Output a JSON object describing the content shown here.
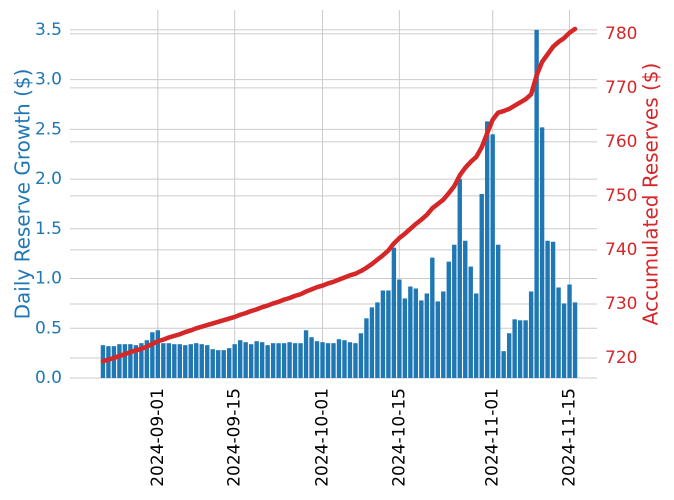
{
  "chart_data": {
    "type": "bar-line",
    "y_label": "Daily Reserve Growth ($)",
    "y2_label": "Accumulated Reserves ($)",
    "x": [
      "2024-08-22",
      "2024-08-23",
      "2024-08-24",
      "2024-08-25",
      "2024-08-26",
      "2024-08-27",
      "2024-08-28",
      "2024-08-29",
      "2024-08-30",
      "2024-08-31",
      "2024-09-01",
      "2024-09-02",
      "2024-09-03",
      "2024-09-04",
      "2024-09-05",
      "2024-09-06",
      "2024-09-07",
      "2024-09-08",
      "2024-09-09",
      "2024-09-10",
      "2024-09-11",
      "2024-09-12",
      "2024-09-13",
      "2024-09-14",
      "2024-09-15",
      "2024-09-16",
      "2024-09-17",
      "2024-09-18",
      "2024-09-19",
      "2024-09-20",
      "2024-09-21",
      "2024-09-22",
      "2024-09-23",
      "2024-09-24",
      "2024-09-25",
      "2024-09-26",
      "2024-09-27",
      "2024-09-28",
      "2024-09-29",
      "2024-09-30",
      "2024-10-01",
      "2024-10-02",
      "2024-10-03",
      "2024-10-04",
      "2024-10-05",
      "2024-10-06",
      "2024-10-07",
      "2024-10-08",
      "2024-10-09",
      "2024-10-10",
      "2024-10-11",
      "2024-10-12",
      "2024-10-13",
      "2024-10-14",
      "2024-10-15",
      "2024-10-16",
      "2024-10-17",
      "2024-10-18",
      "2024-10-19",
      "2024-10-20",
      "2024-10-21",
      "2024-10-22",
      "2024-10-23",
      "2024-10-24",
      "2024-10-25",
      "2024-10-26",
      "2024-10-27",
      "2024-10-28",
      "2024-10-29",
      "2024-10-30",
      "2024-10-31",
      "2024-11-01",
      "2024-11-02",
      "2024-11-03",
      "2024-11-04",
      "2024-11-05",
      "2024-11-06",
      "2024-11-07",
      "2024-11-08",
      "2024-11-09",
      "2024-11-10",
      "2024-11-11",
      "2024-11-12",
      "2024-11-13",
      "2024-11-14",
      "2024-11-15",
      "2024-11-16"
    ],
    "series": [
      {
        "type": "bar",
        "color": "#1f77b4",
        "values": [
          0.33,
          0.32,
          0.32,
          0.34,
          0.34,
          0.34,
          0.33,
          0.35,
          0.38,
          0.46,
          0.48,
          0.35,
          0.35,
          0.34,
          0.34,
          0.33,
          0.34,
          0.35,
          0.34,
          0.33,
          0.29,
          0.28,
          0.28,
          0.3,
          0.34,
          0.38,
          0.36,
          0.34,
          0.37,
          0.36,
          0.33,
          0.35,
          0.35,
          0.35,
          0.36,
          0.35,
          0.35,
          0.48,
          0.41,
          0.37,
          0.36,
          0.35,
          0.35,
          0.39,
          0.38,
          0.36,
          0.35,
          0.45,
          0.6,
          0.71,
          0.76,
          0.88,
          0.88,
          1.31,
          0.99,
          0.8,
          0.92,
          0.9,
          0.78,
          0.85,
          1.21,
          0.77,
          0.87,
          1.17,
          1.34,
          2.0,
          1.38,
          1.12,
          0.85,
          1.85,
          2.58,
          2.45,
          1.34,
          0.27,
          0.45,
          0.59,
          0.58,
          0.58,
          0.87,
          3.5,
          2.52,
          1.38,
          1.37,
          0.91,
          0.75,
          0.94,
          0.76
        ]
      },
      {
        "type": "line",
        "axis": "y2",
        "color": "#d62728",
        "values": [
          719.4,
          719.7,
          720.0,
          720.4,
          720.7,
          721.1,
          721.4,
          721.7,
          722.1,
          722.6,
          723.1,
          723.4,
          723.8,
          724.1,
          724.4,
          724.8,
          725.1,
          725.5,
          725.8,
          726.1,
          726.4,
          726.7,
          727.0,
          727.3,
          727.6,
          728.0,
          728.3,
          728.7,
          729.0,
          729.4,
          729.7,
          730.1,
          730.4,
          730.8,
          731.1,
          731.5,
          731.8,
          732.3,
          732.7,
          733.1,
          733.4,
          733.8,
          734.1,
          734.5,
          734.9,
          735.3,
          735.6,
          736.1,
          736.7,
          737.4,
          738.2,
          739.0,
          739.9,
          741.2,
          742.2,
          743.0,
          743.9,
          744.8,
          745.6,
          746.5,
          747.7,
          748.5,
          749.3,
          750.5,
          751.8,
          753.8,
          755.2,
          756.3,
          757.2,
          759.0,
          761.6,
          764.1,
          765.4,
          765.7,
          766.1,
          766.7,
          767.3,
          767.9,
          768.8,
          772.3,
          774.8,
          776.2,
          777.6,
          778.5,
          779.2,
          780.2,
          780.9
        ]
      }
    ],
    "xlim": [
      "2024-08-16",
      "2024-11-20"
    ],
    "xticks": [
      "2024-09-01",
      "2024-09-15",
      "2024-10-01",
      "2024-10-15",
      "2024-11-01",
      "2024-11-15"
    ],
    "ylim": [
      0,
      3.7
    ],
    "yticks": [
      {
        "value": 0,
        "label": "0.0"
      },
      0.5,
      {
        "value": 1,
        "label": "1.0"
      },
      1.5,
      {
        "value": 2,
        "label": "2.0"
      },
      2.5,
      {
        "value": 3,
        "label": "3.0"
      },
      3.5
    ],
    "y_color": "#1f77b4",
    "y2lim": [
      716.3,
      784.4
    ],
    "y2ticks": [
      720,
      730,
      740,
      750,
      760,
      770,
      780
    ],
    "y2_color": "#d62728",
    "grid": true
  }
}
